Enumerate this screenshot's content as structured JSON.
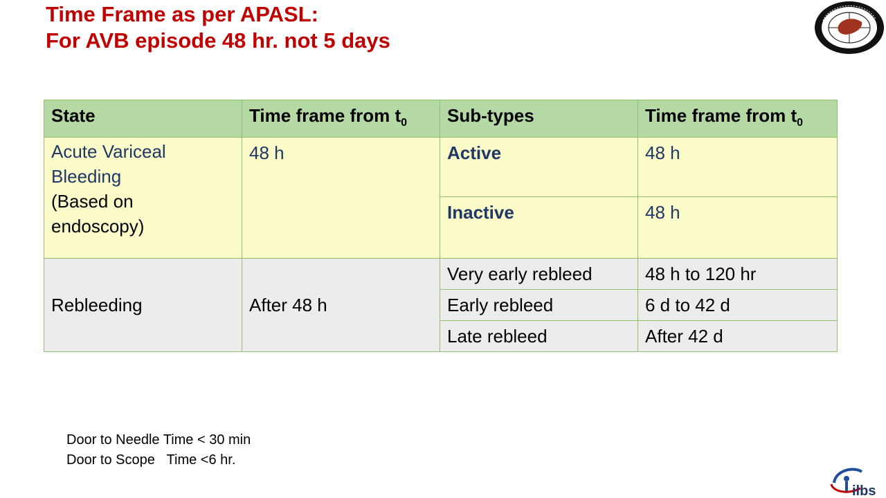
{
  "title": {
    "line1": "Time Frame as per APASL:",
    "line2": "For AVB episode 48 hr. not 5 days"
  },
  "logos": {
    "top_right": "apasl-logo",
    "bottom_right_text": "ilbs"
  },
  "table": {
    "headers": {
      "state": "State",
      "time_frame": "Time frame from t",
      "subscript": "0",
      "subtypes": "Sub-types",
      "time_frame2": "Time frame from t"
    },
    "avb": {
      "state_line1": "Acute Variceal",
      "state_line2": "Bleeding",
      "state_line3": "(Based on",
      "state_line4": "endoscopy)",
      "time": "48 h",
      "subtypes": [
        {
          "name": "Active",
          "time": "48 h"
        },
        {
          "name": "Inactive",
          "time": "48 h"
        }
      ]
    },
    "rebleeding": {
      "state": "Rebleeding",
      "time": "After 48 h",
      "subtypes": [
        {
          "name": "Very early rebleed",
          "time": "48 h to 120 hr"
        },
        {
          "name": "Early rebleed",
          "time": "6 d to 42 d"
        },
        {
          "name": "Late rebleed",
          "time": "After 42 d"
        }
      ]
    }
  },
  "notes": {
    "line1": "Door to Needle Time < 30 min",
    "line2": "Door to Scope   Time <6 hr."
  },
  "colors": {
    "title": "#c00000",
    "header_bg": "#b5d9a5",
    "avb_bg": "#fbfac9",
    "rebleed_bg": "#ececec",
    "navy_text": "#1f3864"
  }
}
